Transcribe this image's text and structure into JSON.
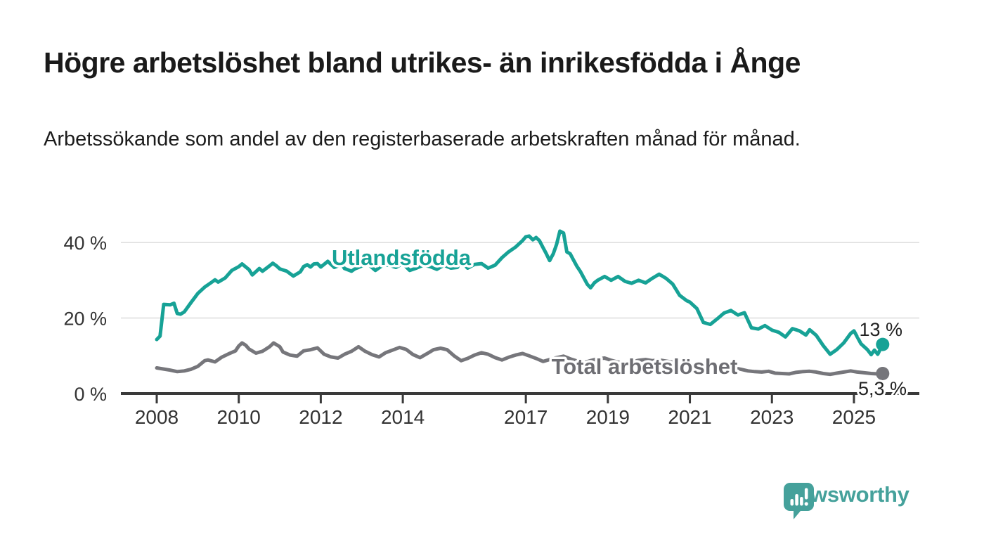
{
  "header": {
    "title": "Högre arbetslöshet bland utrikes- än inrikesfödda i Ånge",
    "subtitle": "Arbetssökande som andel av den registerbaserade arbetskraften månad för månad."
  },
  "chart_data": {
    "type": "line",
    "title": "Högre arbetslöshet bland utrikes- än inrikesfödda i Ånge",
    "subtitle": "Arbetssökande som andel av den registerbaserade arbetskraften månad för månad.",
    "unit": "%",
    "x_axis": {
      "ticks": [
        2008,
        2010,
        2012,
        2014,
        2017,
        2019,
        2021,
        2023,
        2025
      ],
      "tick_labels": [
        "2008",
        "2010",
        "2012",
        "2014",
        "2017",
        "2019",
        "2021",
        "2023",
        "2025"
      ],
      "range": [
        2008.0,
        2025.7
      ]
    },
    "y_axis": {
      "ticks": [
        0,
        20,
        40
      ],
      "tick_labels": [
        "0 %",
        "20 %",
        "40 %"
      ],
      "gridlines": [
        20,
        40
      ],
      "range": [
        0,
        44
      ],
      "grid": true
    },
    "legend_position": "inline-labels",
    "series": [
      {
        "name": "Utlandsfödda",
        "color": "#17a296",
        "end_label": "13 %",
        "end_value": 13,
        "points": [
          [
            2008.0,
            14.3
          ],
          [
            2008.08,
            15.2
          ],
          [
            2008.17,
            23.6
          ],
          [
            2008.33,
            23.5
          ],
          [
            2008.42,
            23.9
          ],
          [
            2008.5,
            21.2
          ],
          [
            2008.58,
            21.0
          ],
          [
            2008.67,
            21.6
          ],
          [
            2008.83,
            24.0
          ],
          [
            2009.0,
            26.5
          ],
          [
            2009.17,
            28.2
          ],
          [
            2009.33,
            29.4
          ],
          [
            2009.42,
            30.1
          ],
          [
            2009.5,
            29.5
          ],
          [
            2009.67,
            30.6
          ],
          [
            2009.83,
            32.6
          ],
          [
            2010.0,
            33.6
          ],
          [
            2010.08,
            34.3
          ],
          [
            2010.25,
            32.8
          ],
          [
            2010.33,
            31.4
          ],
          [
            2010.5,
            33.1
          ],
          [
            2010.58,
            32.4
          ],
          [
            2010.75,
            33.8
          ],
          [
            2010.83,
            34.5
          ],
          [
            2010.92,
            33.8
          ],
          [
            2011.0,
            33.0
          ],
          [
            2011.17,
            32.4
          ],
          [
            2011.33,
            31.1
          ],
          [
            2011.5,
            32.2
          ],
          [
            2011.58,
            33.6
          ],
          [
            2011.67,
            34.1
          ],
          [
            2011.75,
            33.5
          ],
          [
            2011.83,
            34.3
          ],
          [
            2011.92,
            34.4
          ],
          [
            2012.0,
            33.5
          ],
          [
            2012.08,
            34.2
          ],
          [
            2012.17,
            35.0
          ],
          [
            2012.33,
            33.4
          ],
          [
            2012.42,
            33.8
          ],
          [
            2012.5,
            34.4
          ],
          [
            2012.58,
            33.1
          ],
          [
            2012.75,
            32.4
          ],
          [
            2012.83,
            33.0
          ],
          [
            2012.92,
            33.4
          ],
          [
            2013.0,
            33.8
          ],
          [
            2013.17,
            34.1
          ],
          [
            2013.33,
            32.6
          ],
          [
            2013.5,
            33.9
          ],
          [
            2013.67,
            34.0
          ],
          [
            2013.83,
            33.4
          ],
          [
            2014.0,
            34.4
          ],
          [
            2014.17,
            32.6
          ],
          [
            2014.33,
            33.2
          ],
          [
            2014.5,
            34.0
          ],
          [
            2014.67,
            33.6
          ],
          [
            2014.83,
            32.9
          ],
          [
            2015.0,
            34.0
          ],
          [
            2015.17,
            33.2
          ],
          [
            2015.33,
            33.4
          ],
          [
            2015.42,
            35.0
          ],
          [
            2015.58,
            33.2
          ],
          [
            2015.75,
            34.2
          ],
          [
            2015.92,
            34.4
          ],
          [
            2016.08,
            33.2
          ],
          [
            2016.25,
            34.0
          ],
          [
            2016.42,
            36.0
          ],
          [
            2016.58,
            37.5
          ],
          [
            2016.75,
            38.8
          ],
          [
            2016.92,
            40.5
          ],
          [
            2017.0,
            41.5
          ],
          [
            2017.08,
            41.7
          ],
          [
            2017.17,
            40.7
          ],
          [
            2017.25,
            41.3
          ],
          [
            2017.33,
            40.5
          ],
          [
            2017.42,
            38.6
          ],
          [
            2017.5,
            37.0
          ],
          [
            2017.58,
            35.2
          ],
          [
            2017.67,
            37.0
          ],
          [
            2017.75,
            39.5
          ],
          [
            2017.83,
            43.0
          ],
          [
            2017.92,
            42.5
          ],
          [
            2018.0,
            37.5
          ],
          [
            2018.08,
            37.0
          ],
          [
            2018.17,
            35.2
          ],
          [
            2018.25,
            33.6
          ],
          [
            2018.33,
            32.3
          ],
          [
            2018.42,
            30.5
          ],
          [
            2018.5,
            28.9
          ],
          [
            2018.58,
            28.0
          ],
          [
            2018.67,
            29.3
          ],
          [
            2018.75,
            30.0
          ],
          [
            2018.92,
            31.0
          ],
          [
            2019.08,
            30.0
          ],
          [
            2019.25,
            31.0
          ],
          [
            2019.42,
            29.7
          ],
          [
            2019.58,
            29.2
          ],
          [
            2019.75,
            30.0
          ],
          [
            2019.92,
            29.3
          ],
          [
            2020.08,
            30.5
          ],
          [
            2020.25,
            31.6
          ],
          [
            2020.42,
            30.5
          ],
          [
            2020.58,
            29.0
          ],
          [
            2020.75,
            26.0
          ],
          [
            2020.92,
            24.6
          ],
          [
            2021.0,
            24.2
          ],
          [
            2021.17,
            22.5
          ],
          [
            2021.33,
            18.8
          ],
          [
            2021.5,
            18.3
          ],
          [
            2021.67,
            19.8
          ],
          [
            2021.83,
            21.3
          ],
          [
            2022.0,
            22.0
          ],
          [
            2022.17,
            20.8
          ],
          [
            2022.33,
            21.4
          ],
          [
            2022.5,
            17.4
          ],
          [
            2022.67,
            17.1
          ],
          [
            2022.83,
            18.0
          ],
          [
            2023.0,
            16.8
          ],
          [
            2023.17,
            16.2
          ],
          [
            2023.33,
            15.0
          ],
          [
            2023.5,
            17.2
          ],
          [
            2023.67,
            16.6
          ],
          [
            2023.83,
            15.5
          ],
          [
            2023.92,
            16.9
          ],
          [
            2024.08,
            15.4
          ],
          [
            2024.25,
            12.7
          ],
          [
            2024.42,
            10.4
          ],
          [
            2024.58,
            11.6
          ],
          [
            2024.75,
            13.4
          ],
          [
            2024.92,
            15.9
          ],
          [
            2025.0,
            16.6
          ],
          [
            2025.17,
            13.2
          ],
          [
            2025.33,
            11.6
          ],
          [
            2025.42,
            10.3
          ],
          [
            2025.5,
            11.5
          ],
          [
            2025.58,
            10.4
          ],
          [
            2025.7,
            13.0
          ]
        ]
      },
      {
        "name": "Total arbetslöshet",
        "color": "#76767b",
        "label_color": "#6e6e73",
        "end_label": "5,3 %",
        "end_value": 5.3,
        "points": [
          [
            2008.0,
            6.8
          ],
          [
            2008.17,
            6.5
          ],
          [
            2008.33,
            6.2
          ],
          [
            2008.5,
            5.8
          ],
          [
            2008.67,
            6.0
          ],
          [
            2008.83,
            6.4
          ],
          [
            2009.0,
            7.2
          ],
          [
            2009.17,
            8.7
          ],
          [
            2009.25,
            8.9
          ],
          [
            2009.42,
            8.4
          ],
          [
            2009.58,
            9.6
          ],
          [
            2009.75,
            10.5
          ],
          [
            2009.92,
            11.3
          ],
          [
            2010.0,
            12.6
          ],
          [
            2010.08,
            13.4
          ],
          [
            2010.17,
            12.8
          ],
          [
            2010.25,
            11.8
          ],
          [
            2010.42,
            10.7
          ],
          [
            2010.58,
            11.2
          ],
          [
            2010.75,
            12.4
          ],
          [
            2010.85,
            13.4
          ],
          [
            2011.0,
            12.4
          ],
          [
            2011.08,
            11.0
          ],
          [
            2011.25,
            10.2
          ],
          [
            2011.42,
            9.9
          ],
          [
            2011.58,
            11.3
          ],
          [
            2011.75,
            11.6
          ],
          [
            2011.92,
            12.1
          ],
          [
            2012.08,
            10.4
          ],
          [
            2012.25,
            9.7
          ],
          [
            2012.42,
            9.4
          ],
          [
            2012.58,
            10.4
          ],
          [
            2012.75,
            11.2
          ],
          [
            2012.92,
            12.4
          ],
          [
            2013.08,
            11.2
          ],
          [
            2013.25,
            10.3
          ],
          [
            2013.42,
            9.7
          ],
          [
            2013.58,
            10.8
          ],
          [
            2013.75,
            11.5
          ],
          [
            2013.92,
            12.2
          ],
          [
            2014.08,
            11.7
          ],
          [
            2014.25,
            10.3
          ],
          [
            2014.42,
            9.5
          ],
          [
            2014.58,
            10.5
          ],
          [
            2014.75,
            11.6
          ],
          [
            2014.92,
            12.0
          ],
          [
            2015.08,
            11.6
          ],
          [
            2015.25,
            10.0
          ],
          [
            2015.42,
            8.7
          ],
          [
            2015.58,
            9.3
          ],
          [
            2015.75,
            10.2
          ],
          [
            2015.92,
            10.8
          ],
          [
            2016.08,
            10.4
          ],
          [
            2016.25,
            9.5
          ],
          [
            2016.42,
            8.9
          ],
          [
            2016.58,
            9.6
          ],
          [
            2016.75,
            10.2
          ],
          [
            2016.92,
            10.6
          ],
          [
            2017.08,
            10.0
          ],
          [
            2017.25,
            9.3
          ],
          [
            2017.42,
            8.5
          ],
          [
            2017.58,
            9.0
          ],
          [
            2017.75,
            9.5
          ],
          [
            2017.92,
            9.9
          ],
          [
            2018.08,
            9.2
          ],
          [
            2018.25,
            8.6
          ],
          [
            2018.42,
            8.2
          ],
          [
            2018.58,
            8.7
          ],
          [
            2018.75,
            9.2
          ],
          [
            2018.92,
            9.4
          ],
          [
            2019.08,
            8.8
          ],
          [
            2019.25,
            8.3
          ],
          [
            2019.42,
            8.0
          ],
          [
            2019.58,
            8.4
          ],
          [
            2019.75,
            8.8
          ],
          [
            2019.92,
            9.0
          ],
          [
            2020.08,
            8.7
          ],
          [
            2020.25,
            8.9
          ],
          [
            2020.42,
            8.6
          ],
          [
            2020.58,
            8.3
          ],
          [
            2020.75,
            8.0
          ],
          [
            2020.92,
            7.8
          ],
          [
            2021.08,
            7.6
          ],
          [
            2021.25,
            7.3
          ],
          [
            2021.42,
            7.1
          ],
          [
            2021.58,
            7.2
          ],
          [
            2021.75,
            7.3
          ],
          [
            2021.92,
            7.2
          ],
          [
            2022.08,
            6.8
          ],
          [
            2022.25,
            6.4
          ],
          [
            2022.42,
            6.0
          ],
          [
            2022.58,
            5.8
          ],
          [
            2022.75,
            5.7
          ],
          [
            2022.92,
            5.9
          ],
          [
            2023.08,
            5.4
          ],
          [
            2023.25,
            5.3
          ],
          [
            2023.42,
            5.2
          ],
          [
            2023.58,
            5.6
          ],
          [
            2023.75,
            5.8
          ],
          [
            2023.92,
            5.9
          ],
          [
            2024.08,
            5.7
          ],
          [
            2024.25,
            5.3
          ],
          [
            2024.42,
            5.1
          ],
          [
            2024.58,
            5.4
          ],
          [
            2024.75,
            5.7
          ],
          [
            2024.92,
            6.0
          ],
          [
            2025.08,
            5.7
          ],
          [
            2025.25,
            5.5
          ],
          [
            2025.42,
            5.3
          ],
          [
            2025.58,
            5.2
          ],
          [
            2025.7,
            5.3
          ]
        ]
      }
    ]
  },
  "footer": {
    "brand": "Newsworthy",
    "brand_color": "#45a19b"
  }
}
